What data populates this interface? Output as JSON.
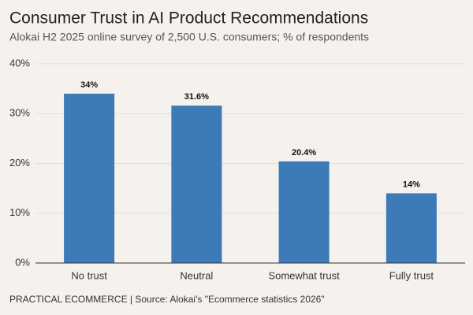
{
  "chart_data": {
    "type": "bar",
    "title": "Consumer Trust in AI Product Recommendations",
    "subtitle": "Alokai H2 2025 online survey of 2,500 U.S. consumers; % of respondents",
    "source": "PRACTICAL ECOMMERCE | Source: Alokai's \"Ecommerce statistics 2026\"",
    "categories": [
      "No trust",
      "Neutral",
      "Somewhat trust",
      "Fully trust"
    ],
    "values": [
      34,
      31.6,
      20.4,
      14
    ],
    "value_labels": [
      "34%",
      "31.6%",
      "20.4%",
      "14%"
    ],
    "color": "#3d7ab8",
    "ylim": [
      0,
      40
    ],
    "yticks": [
      {
        "value": 0,
        "label": "0%"
      },
      {
        "value": 10,
        "label": "10%"
      },
      {
        "value": 20,
        "label": "20%"
      },
      {
        "value": 30,
        "label": "30%"
      },
      {
        "value": 40,
        "label": "40%"
      }
    ],
    "grid": true
  }
}
